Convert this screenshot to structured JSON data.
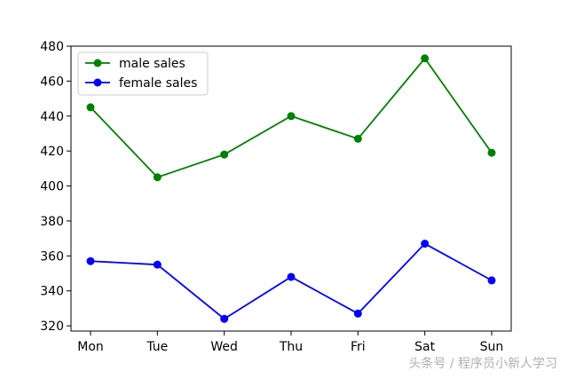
{
  "chart_data": {
    "type": "line",
    "categories": [
      "Mon",
      "Tue",
      "Wed",
      "Thu",
      "Fri",
      "Sat",
      "Sun"
    ],
    "series": [
      {
        "name": "male sales",
        "color": "#008000",
        "values": [
          445,
          405,
          418,
          440,
          427,
          473,
          419
        ]
      },
      {
        "name": "female sales",
        "color": "#0000ff",
        "values": [
          357,
          355,
          324,
          348,
          327,
          367,
          346
        ]
      }
    ],
    "ylim": [
      317,
      480
    ],
    "yticks": [
      320,
      340,
      360,
      380,
      400,
      420,
      440,
      460,
      480
    ],
    "grid": false,
    "legend": "top-left"
  },
  "watermark": {
    "text": "头条号 / 程序员小新人学习"
  }
}
